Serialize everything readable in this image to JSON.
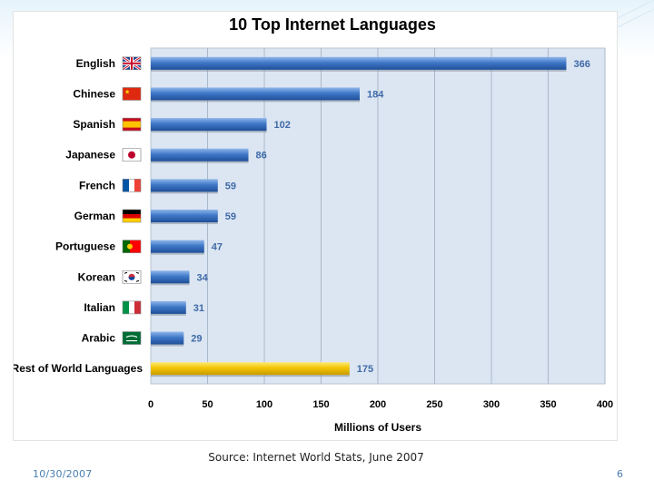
{
  "chart_data": {
    "type": "bar",
    "orientation": "horizontal",
    "title": "10 Top Internet Languages",
    "xlabel": "Millions of Users",
    "xlim": [
      0,
      400
    ],
    "xticks": [
      0,
      50,
      100,
      150,
      200,
      250,
      300,
      350,
      400
    ],
    "grid": true,
    "categories": [
      "English",
      "Chinese",
      "Spanish",
      "Japanese",
      "French",
      "German",
      "Portuguese",
      "Korean",
      "Italian",
      "Arabic",
      "Rest of World Languages"
    ],
    "values": [
      366,
      184,
      102,
      86,
      59,
      59,
      47,
      34,
      31,
      29,
      175
    ],
    "flag_icons": [
      "uk-flag-icon",
      "china-flag-icon",
      "spain-flag-icon",
      "japan-flag-icon",
      "france-flag-icon",
      "germany-flag-icon",
      "portugal-flag-icon",
      "korea-flag-icon",
      "italy-flag-icon",
      "saudi-flag-icon",
      null
    ],
    "bar_colors": [
      "#3f78c8",
      "#3f78c8",
      "#3f78c8",
      "#3f78c8",
      "#3f78c8",
      "#3f78c8",
      "#3f78c8",
      "#3f78c8",
      "#3f78c8",
      "#3f78c8",
      "#f2c500"
    ],
    "plot_background": "#dce6f2",
    "value_label_color": "#3f6aa8"
  },
  "footer": {
    "source": "Source: Internet World Stats, June 2007",
    "date": "10/30/2007",
    "page": "6"
  }
}
